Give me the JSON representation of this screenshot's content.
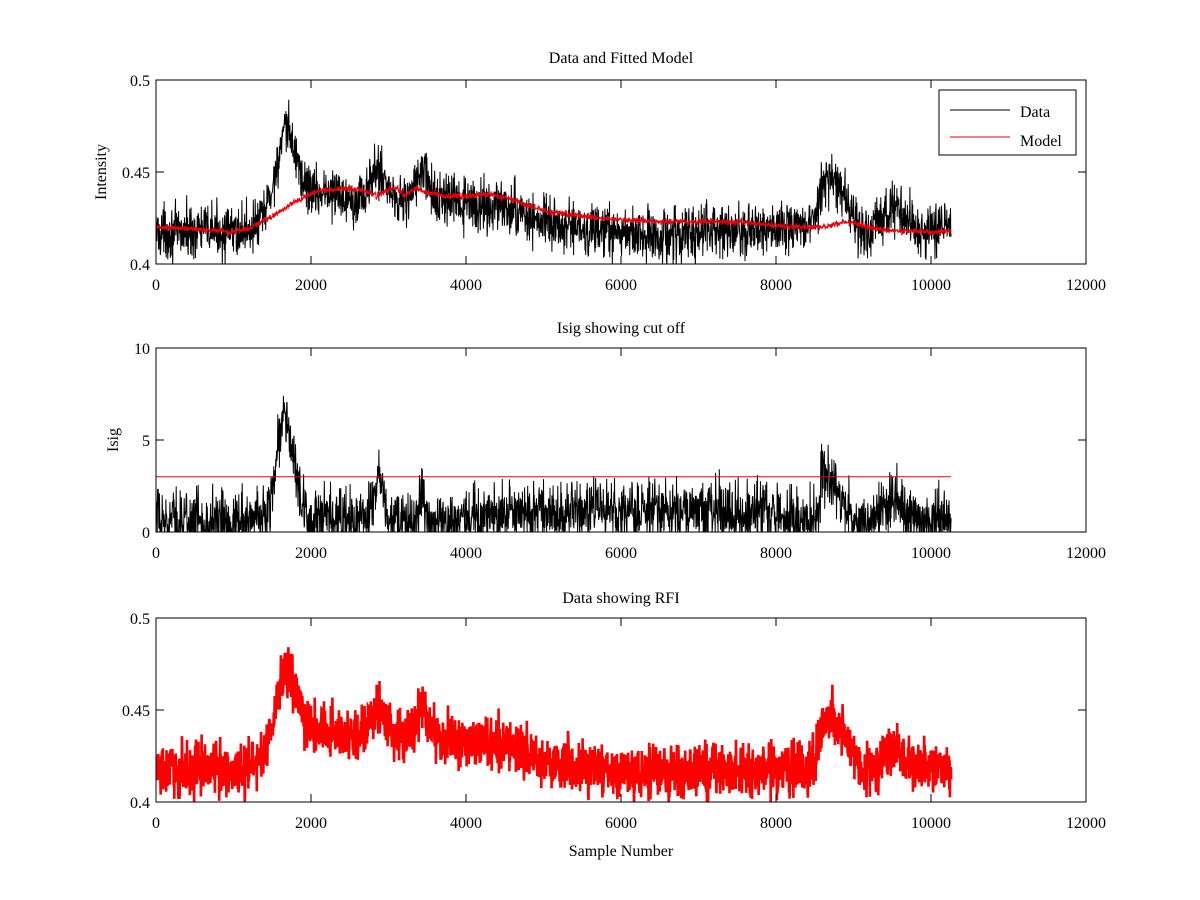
{
  "figure": {
    "background": "#ffffff"
  },
  "chart_data": [
    {
      "type": "line",
      "title": "Data and Fitted Model",
      "xlabel": "",
      "ylabel": "Intensity",
      "xlim": [
        0,
        12000
      ],
      "ylim": [
        0.4,
        0.5
      ],
      "xticks": [
        0,
        2000,
        4000,
        6000,
        8000,
        10000,
        12000
      ],
      "xtick_labels": [
        "0",
        "2000",
        "4000",
        "6000",
        "8000",
        "10000",
        "12000"
      ],
      "yticks": [
        0.4,
        0.45,
        0.5
      ],
      "ytick_labels": [
        "0.4",
        "0.45",
        "0.5"
      ],
      "grid": false,
      "legend": {
        "position": "top-right",
        "entries": [
          "Data",
          "Model"
        ]
      },
      "series": [
        {
          "name": "Data",
          "color": "#000000",
          "noise": 0.007,
          "x": [
            0,
            200,
            400,
            600,
            800,
            950,
            1100,
            1300,
            1400,
            1500,
            1600,
            1700,
            1800,
            1900,
            2000,
            2200,
            2400,
            2600,
            2700,
            2800,
            2880,
            2960,
            3050,
            3200,
            3300,
            3400,
            3450,
            3520,
            3600,
            3800,
            4000,
            4200,
            4400,
            4600,
            4800,
            5000,
            5400,
            5800,
            6200,
            6600,
            7000,
            7400,
            7800,
            8200,
            8400,
            8500,
            8600,
            8700,
            8800,
            8900,
            9000,
            9100,
            9200,
            9300,
            9400,
            9500,
            9600,
            9700,
            9800,
            9900,
            10000,
            10260
          ],
          "y": [
            0.418,
            0.417,
            0.418,
            0.419,
            0.418,
            0.417,
            0.418,
            0.421,
            0.428,
            0.441,
            0.462,
            0.474,
            0.46,
            0.445,
            0.44,
            0.439,
            0.437,
            0.436,
            0.438,
            0.447,
            0.453,
            0.445,
            0.437,
            0.435,
            0.438,
            0.448,
            0.452,
            0.442,
            0.436,
            0.434,
            0.432,
            0.431,
            0.432,
            0.429,
            0.426,
            0.422,
            0.419,
            0.417,
            0.416,
            0.416,
            0.417,
            0.418,
            0.418,
            0.419,
            0.419,
            0.422,
            0.442,
            0.447,
            0.442,
            0.435,
            0.426,
            0.42,
            0.418,
            0.421,
            0.427,
            0.429,
            0.427,
            0.424,
            0.42,
            0.419,
            0.419,
            0.42
          ]
        },
        {
          "name": "Model",
          "color": "#e8000b",
          "noise": 0.0008,
          "x": [
            0,
            500,
            900,
            950,
            1000,
            1200,
            1500,
            1800,
            2100,
            2400,
            2600,
            2850,
            3000,
            3100,
            3200,
            3350,
            3500,
            3700,
            4000,
            4300,
            4600,
            5000,
            5500,
            6000,
            6500,
            7000,
            7500,
            8000,
            8300,
            8500,
            8700,
            8900,
            9100,
            9300,
            9500,
            9700,
            9900,
            10000,
            10260
          ],
          "y": [
            0.42,
            0.419,
            0.418,
            0.4165,
            0.418,
            0.419,
            0.426,
            0.434,
            0.44,
            0.441,
            0.441,
            0.437,
            0.44,
            0.442,
            0.437,
            0.441,
            0.439,
            0.437,
            0.437,
            0.438,
            0.435,
            0.429,
            0.426,
            0.424,
            0.423,
            0.423,
            0.423,
            0.421,
            0.42,
            0.42,
            0.421,
            0.423,
            0.421,
            0.419,
            0.418,
            0.418,
            0.418,
            0.417,
            0.418
          ]
        }
      ]
    },
    {
      "type": "line",
      "title": "Isig showing cut off",
      "xlabel": "",
      "ylabel": "Isig",
      "xlim": [
        0,
        12000
      ],
      "ylim": [
        0,
        10
      ],
      "xticks": [
        0,
        2000,
        4000,
        6000,
        8000,
        10000,
        12000
      ],
      "xtick_labels": [
        "0",
        "2000",
        "4000",
        "6000",
        "8000",
        "10000",
        "12000"
      ],
      "yticks": [
        0,
        5,
        10
      ],
      "ytick_labels": [
        "0",
        "5",
        "10"
      ],
      "grid": false,
      "series": [
        {
          "color": "#000000",
          "noise": 0.85,
          "clip_min": 0,
          "x": [
            0,
            400,
            800,
            1200,
            1400,
            1500,
            1600,
            1650,
            1700,
            1800,
            1900,
            1950,
            2000,
            2200,
            2400,
            2600,
            2700,
            2800,
            2850,
            2900,
            2950,
            3000,
            3200,
            3350,
            3430,
            3470,
            3550,
            3700,
            4000,
            4500,
            5000,
            5500,
            6000,
            6500,
            7000,
            7500,
            8000,
            8400,
            8550,
            8600,
            8650,
            8700,
            8800,
            8900,
            9000,
            9200,
            9300,
            9400,
            9500,
            9600,
            9700,
            9800,
            10000,
            10260
          ],
          "y": [
            0.6,
            0.6,
            0.6,
            0.6,
            0.8,
            2.2,
            5.6,
            6.3,
            5.9,
            3.3,
            1.0,
            0.3,
            0.6,
            0.6,
            0.6,
            0.6,
            0.6,
            1.5,
            2.8,
            2.6,
            1.5,
            0.6,
            0.4,
            0.6,
            2.4,
            1.2,
            0.4,
            0.6,
            0.7,
            0.9,
            1.0,
            1.1,
            1.2,
            1.2,
            1.1,
            1.0,
            0.9,
            0.6,
            0.8,
            3.5,
            3.3,
            2.9,
            2.2,
            1.2,
            0.5,
            0.3,
            0.6,
            1.5,
            1.8,
            1.5,
            0.8,
            0.6,
            0.6,
            0.6
          ]
        },
        {
          "color": "#e8000b",
          "noise": 0,
          "x": [
            0,
            10260
          ],
          "y": [
            3,
            3
          ]
        }
      ]
    },
    {
      "type": "line",
      "title": "Data showing RFI",
      "xlabel": "Sample Number",
      "ylabel": "",
      "xlim": [
        0,
        12000
      ],
      "ylim": [
        0.4,
        0.5
      ],
      "xticks": [
        0,
        2000,
        4000,
        6000,
        8000,
        10000,
        12000
      ],
      "xtick_labels": [
        "0",
        "2000",
        "4000",
        "6000",
        "8000",
        "10000",
        "12000"
      ],
      "yticks": [
        0.4,
        0.45,
        0.5
      ],
      "ytick_labels": [
        "0.4",
        "0.45",
        "0.5"
      ],
      "grid": false,
      "series": [
        {
          "color": "#ff0000",
          "marker": "+",
          "noise": 0.007,
          "x": [
            0,
            200,
            400,
            600,
            800,
            950,
            1100,
            1300,
            1400,
            1500,
            1600,
            1700,
            1800,
            1900,
            2000,
            2200,
            2400,
            2600,
            2700,
            2800,
            2880,
            2960,
            3050,
            3200,
            3300,
            3400,
            3450,
            3520,
            3600,
            3800,
            4000,
            4200,
            4400,
            4600,
            4800,
            5000,
            5400,
            5800,
            6200,
            6600,
            7000,
            7400,
            7800,
            8200,
            8400,
            8500,
            8600,
            8700,
            8800,
            8900,
            9000,
            9100,
            9200,
            9300,
            9400,
            9500,
            9600,
            9700,
            9800,
            9900,
            10000,
            10260
          ],
          "y": [
            0.418,
            0.417,
            0.418,
            0.419,
            0.418,
            0.417,
            0.418,
            0.421,
            0.428,
            0.441,
            0.462,
            0.474,
            0.46,
            0.445,
            0.44,
            0.439,
            0.437,
            0.436,
            0.438,
            0.447,
            0.453,
            0.445,
            0.437,
            0.435,
            0.438,
            0.448,
            0.452,
            0.442,
            0.436,
            0.434,
            0.432,
            0.431,
            0.432,
            0.429,
            0.426,
            0.422,
            0.419,
            0.417,
            0.416,
            0.416,
            0.417,
            0.418,
            0.418,
            0.419,
            0.419,
            0.422,
            0.442,
            0.447,
            0.442,
            0.435,
            0.426,
            0.42,
            0.418,
            0.421,
            0.427,
            0.429,
            0.427,
            0.424,
            0.42,
            0.419,
            0.419,
            0.42
          ]
        }
      ]
    }
  ]
}
